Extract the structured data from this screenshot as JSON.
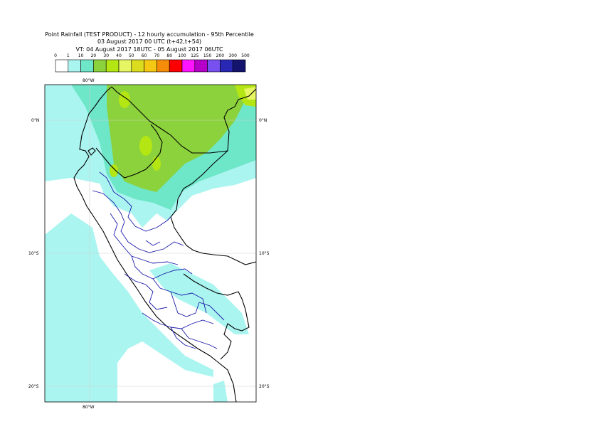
{
  "title": {
    "line1": "Point Rainfall (TEST PRODUCT) - 12 hourly accumulation - 95th Percentile",
    "line2": "03 August 2017 00 UTC (t+42,t+54)",
    "line3": "VT: 04 August 2017 18UTC - 05 August 2017 06UTC"
  },
  "legend": {
    "thresholds": [
      "0",
      "1",
      "10",
      "20",
      "30",
      "40",
      "50",
      "60",
      "70",
      "80",
      "100",
      "125",
      "150",
      "200",
      "300",
      "500"
    ],
    "colors": [
      "#ffffff",
      "#aaf5f0",
      "#6ee6c8",
      "#8cd23c",
      "#b4e614",
      "#e6f564",
      "#dcdc1e",
      "#f5c814",
      "#f58c0a",
      "#ff0000",
      "#ff14ff",
      "#b400c8",
      "#7850f0",
      "#2828b4",
      "#14146e"
    ]
  },
  "map": {
    "lat_labels": [
      "0°N",
      "10°S",
      "20°S"
    ],
    "lon_label_top": "80°W",
    "lon_label_bottom": "80°W"
  }
}
